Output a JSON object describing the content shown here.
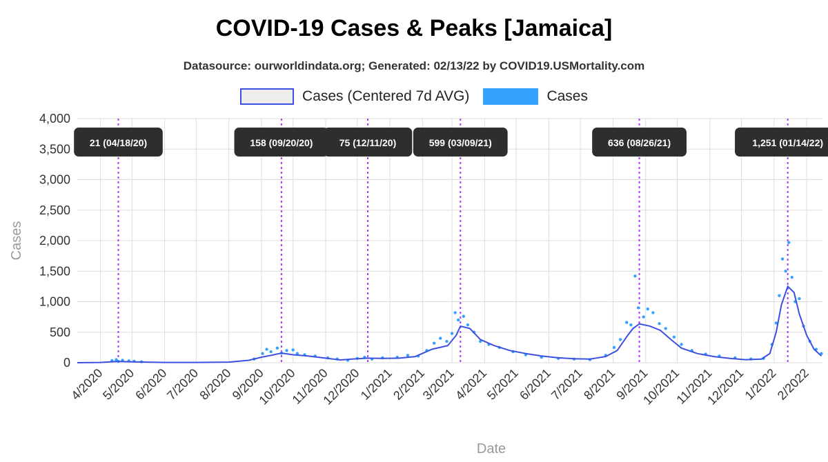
{
  "chart_data": {
    "type": "line",
    "title": "COVID-19 Cases & Peaks [Jamaica]",
    "subtitle": "Datasource: ourworldindata.org; Generated: 02/13/22 by COVID19.USMortality.com",
    "xlabel": "Date",
    "ylabel": "Cases",
    "ylim": [
      0,
      4000
    ],
    "yticks": [
      0,
      500,
      1000,
      1500,
      2000,
      2500,
      3000,
      3500,
      4000
    ],
    "ytick_labels": [
      "0",
      "500",
      "1,000",
      "1,500",
      "2,000",
      "2,500",
      "3,000",
      "3,500",
      "4,000"
    ],
    "xlim": [
      "2020-03-10",
      "2022-02-16"
    ],
    "xticks": [
      "2020-04-01",
      "2020-05-01",
      "2020-06-01",
      "2020-07-01",
      "2020-08-01",
      "2020-09-01",
      "2020-10-01",
      "2020-11-01",
      "2020-12-01",
      "2021-01-01",
      "2021-02-01",
      "2021-03-01",
      "2021-04-01",
      "2021-05-01",
      "2021-06-01",
      "2021-07-01",
      "2021-08-01",
      "2021-09-01",
      "2021-10-01",
      "2021-11-01",
      "2021-12-01",
      "2022-01-01",
      "2022-02-01"
    ],
    "xtick_labels": [
      "4/2020",
      "5/2020",
      "6/2020",
      "7/2020",
      "8/2020",
      "9/2020",
      "10/2020",
      "11/2020",
      "12/2020",
      "1/2021",
      "2/2021",
      "3/2021",
      "4/2021",
      "5/2021",
      "6/2021",
      "7/2021",
      "8/2021",
      "9/2021",
      "10/2021",
      "11/2021",
      "12/2021",
      "1/2022",
      "2/2022"
    ],
    "grid": true,
    "legend_position": "top",
    "legend": [
      {
        "name": "Cases (Centered 7d AVG)",
        "color": "#3b4fe0",
        "fill": "#ededed"
      },
      {
        "name": "Cases",
        "color": "#36a2ff"
      }
    ],
    "series": [
      {
        "name": "Cases (Centered 7d AVG)",
        "color": "#3b4fe0",
        "points": [
          [
            "2020-03-10",
            0
          ],
          [
            "2020-04-01",
            5
          ],
          [
            "2020-04-18",
            21
          ],
          [
            "2020-05-01",
            15
          ],
          [
            "2020-06-01",
            5
          ],
          [
            "2020-07-01",
            5
          ],
          [
            "2020-08-01",
            10
          ],
          [
            "2020-08-20",
            40
          ],
          [
            "2020-09-01",
            90
          ],
          [
            "2020-09-10",
            120
          ],
          [
            "2020-09-20",
            158
          ],
          [
            "2020-10-01",
            130
          ],
          [
            "2020-10-15",
            110
          ],
          [
            "2020-11-01",
            75
          ],
          [
            "2020-11-15",
            45
          ],
          [
            "2020-12-01",
            65
          ],
          [
            "2020-12-11",
            75
          ],
          [
            "2020-12-25",
            70
          ],
          [
            "2021-01-10",
            75
          ],
          [
            "2021-01-25",
            100
          ],
          [
            "2021-02-10",
            220
          ],
          [
            "2021-02-25",
            280
          ],
          [
            "2021-03-05",
            450
          ],
          [
            "2021-03-09",
            599
          ],
          [
            "2021-03-18",
            560
          ],
          [
            "2021-03-28",
            380
          ],
          [
            "2021-04-10",
            280
          ],
          [
            "2021-04-25",
            200
          ],
          [
            "2021-05-10",
            150
          ],
          [
            "2021-05-25",
            110
          ],
          [
            "2021-06-10",
            80
          ],
          [
            "2021-06-25",
            65
          ],
          [
            "2021-07-10",
            60
          ],
          [
            "2021-07-25",
            100
          ],
          [
            "2021-08-05",
            200
          ],
          [
            "2021-08-15",
            450
          ],
          [
            "2021-08-20",
            560
          ],
          [
            "2021-08-26",
            636
          ],
          [
            "2021-09-05",
            600
          ],
          [
            "2021-09-15",
            530
          ],
          [
            "2021-09-25",
            380
          ],
          [
            "2021-10-05",
            240
          ],
          [
            "2021-10-20",
            150
          ],
          [
            "2021-11-05",
            100
          ],
          [
            "2021-11-20",
            70
          ],
          [
            "2021-12-05",
            50
          ],
          [
            "2021-12-20",
            60
          ],
          [
            "2021-12-28",
            150
          ],
          [
            "2022-01-03",
            500
          ],
          [
            "2022-01-08",
            950
          ],
          [
            "2022-01-14",
            1251
          ],
          [
            "2022-01-20",
            1150
          ],
          [
            "2022-01-25",
            800
          ],
          [
            "2022-02-01",
            450
          ],
          [
            "2022-02-08",
            220
          ],
          [
            "2022-02-15",
            110
          ]
        ]
      },
      {
        "name": "Cases",
        "color": "#36a2ff",
        "points": [
          [
            "2020-04-12",
            35
          ],
          [
            "2020-04-16",
            50
          ],
          [
            "2020-04-18",
            21
          ],
          [
            "2020-04-22",
            40
          ],
          [
            "2020-04-28",
            30
          ],
          [
            "2020-05-03",
            25
          ],
          [
            "2020-05-10",
            15
          ],
          [
            "2020-08-25",
            60
          ],
          [
            "2020-09-02",
            150
          ],
          [
            "2020-09-06",
            220
          ],
          [
            "2020-09-10",
            180
          ],
          [
            "2020-09-16",
            240
          ],
          [
            "2020-09-20",
            158
          ],
          [
            "2020-09-25",
            200
          ],
          [
            "2020-10-01",
            210
          ],
          [
            "2020-10-05",
            150
          ],
          [
            "2020-10-12",
            130
          ],
          [
            "2020-10-22",
            110
          ],
          [
            "2020-11-03",
            80
          ],
          [
            "2020-11-12",
            60
          ],
          [
            "2020-11-22",
            40
          ],
          [
            "2020-12-01",
            70
          ],
          [
            "2020-12-08",
            90
          ],
          [
            "2020-12-15",
            60
          ],
          [
            "2020-12-25",
            80
          ],
          [
            "2021-01-08",
            90
          ],
          [
            "2021-01-18",
            120
          ],
          [
            "2021-01-28",
            110
          ],
          [
            "2021-02-05",
            200
          ],
          [
            "2021-02-12",
            320
          ],
          [
            "2021-02-18",
            400
          ],
          [
            "2021-02-24",
            350
          ],
          [
            "2021-03-01",
            480
          ],
          [
            "2021-03-04",
            820
          ],
          [
            "2021-03-07",
            700
          ],
          [
            "2021-03-12",
            760
          ],
          [
            "2021-03-16",
            620
          ],
          [
            "2021-03-22",
            500
          ],
          [
            "2021-03-28",
            350
          ],
          [
            "2021-04-05",
            300
          ],
          [
            "2021-04-15",
            250
          ],
          [
            "2021-04-28",
            180
          ],
          [
            "2021-05-10",
            130
          ],
          [
            "2021-05-25",
            90
          ],
          [
            "2021-06-10",
            70
          ],
          [
            "2021-06-25",
            60
          ],
          [
            "2021-07-10",
            50
          ],
          [
            "2021-07-25",
            120
          ],
          [
            "2021-08-02",
            250
          ],
          [
            "2021-08-08",
            380
          ],
          [
            "2021-08-14",
            660
          ],
          [
            "2021-08-18",
            620
          ],
          [
            "2021-08-22",
            1420
          ],
          [
            "2021-08-25",
            900
          ],
          [
            "2021-08-30",
            750
          ],
          [
            "2021-09-03",
            880
          ],
          [
            "2021-09-08",
            820
          ],
          [
            "2021-09-14",
            640
          ],
          [
            "2021-09-20",
            560
          ],
          [
            "2021-09-28",
            420
          ],
          [
            "2021-10-05",
            300
          ],
          [
            "2021-10-15",
            200
          ],
          [
            "2021-10-28",
            140
          ],
          [
            "2021-11-10",
            110
          ],
          [
            "2021-11-25",
            80
          ],
          [
            "2021-12-10",
            60
          ],
          [
            "2021-12-22",
            70
          ],
          [
            "2021-12-30",
            300
          ],
          [
            "2022-01-03",
            650
          ],
          [
            "2022-01-06",
            1100
          ],
          [
            "2022-01-09",
            1700
          ],
          [
            "2022-01-12",
            1500
          ],
          [
            "2022-01-15",
            1970
          ],
          [
            "2022-01-18",
            1400
          ],
          [
            "2022-01-21",
            1000
          ],
          [
            "2022-01-25",
            1050
          ],
          [
            "2022-01-29",
            600
          ],
          [
            "2022-02-04",
            350
          ],
          [
            "2022-02-10",
            220
          ],
          [
            "2022-02-15",
            150
          ]
        ]
      }
    ],
    "annotations": [
      {
        "label": "21 (04/18/20)",
        "date": "2020-04-18"
      },
      {
        "label": "158 (09/20/20)",
        "date": "2020-09-20"
      },
      {
        "label": "75 (12/11/20)",
        "date": "2020-12-11"
      },
      {
        "label": "599 (03/09/21)",
        "date": "2021-03-09"
      },
      {
        "label": "636 (08/26/21)",
        "date": "2021-08-26"
      },
      {
        "label": "1,251 (01/14/22)",
        "date": "2022-01-14"
      }
    ],
    "annotation_line_color": "#a33cf5",
    "grid_color": "#dddddd"
  }
}
